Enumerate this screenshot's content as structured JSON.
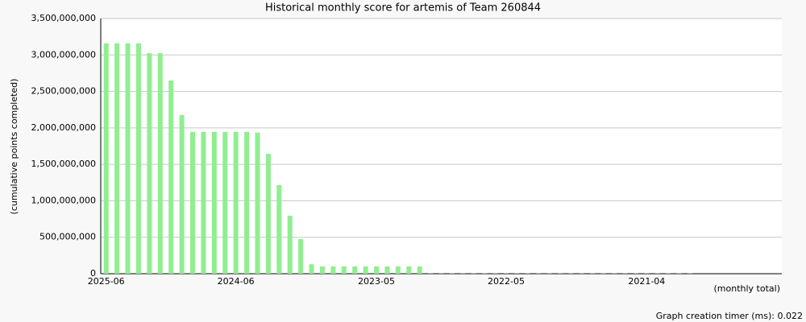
{
  "chart_data": {
    "type": "bar",
    "title": "Historical monthly score for artemis of Team 260844",
    "y_label": "(cumulative points completed)",
    "x_label": "(monthly total)",
    "footer": "Graph creation timer (ms): 0.022",
    "color": "#90ee90",
    "grid": true,
    "categories": [
      "2025-06",
      null,
      null,
      null,
      null,
      null,
      null,
      null,
      null,
      null,
      null,
      null,
      "2024-06",
      null,
      null,
      null,
      null,
      null,
      null,
      null,
      null,
      null,
      null,
      null,
      null,
      "2023-05",
      null,
      null,
      null,
      null,
      null,
      null,
      null,
      null,
      null,
      null,
      null,
      "2022-05",
      null,
      null,
      null,
      null,
      null,
      null,
      null,
      null,
      null,
      null,
      null,
      null,
      "2021-04",
      null,
      null,
      null,
      null,
      null,
      null,
      null,
      null,
      null,
      null,
      null,
      null
    ],
    "values": [
      3160000000,
      3160000000,
      3160000000,
      3160000000,
      3025000000,
      3025000000,
      2650000000,
      2175000000,
      1945000000,
      1945000000,
      1945000000,
      1945000000,
      1945000000,
      1945000000,
      1935000000,
      1645000000,
      1215000000,
      795000000,
      475000000,
      130000000,
      100000000,
      100000000,
      100000000,
      100000000,
      100000000,
      100000000,
      100000000,
      100000000,
      100000000,
      100000000,
      3000000,
      3000000,
      3000000,
      3000000,
      3000000,
      3000000,
      3000000,
      3000000,
      3000000,
      3000000,
      3000000,
      3000000,
      3000000,
      3000000,
      3000000,
      3000000,
      3000000,
      3000000,
      3000000,
      3000000,
      3000000,
      3000000,
      3000000,
      3000000,
      3000000,
      0,
      0,
      0,
      0,
      0,
      0,
      0,
      0
    ],
    "ylim": [
      0,
      3500000000
    ],
    "yticks": [
      {
        "value": 0,
        "label": "0"
      },
      {
        "value": 500000000,
        "label": "500,000,000"
      },
      {
        "value": 1000000000,
        "label": "1,000,000,000"
      },
      {
        "value": 1500000000,
        "label": "1,500,000,000"
      },
      {
        "value": 2000000000,
        "label": "2,000,000,000"
      },
      {
        "value": 2500000000,
        "label": "2,500,000,000"
      },
      {
        "value": 3000000000,
        "label": "3,000,000,000"
      },
      {
        "value": 3500000000,
        "label": "3,500,000,000"
      }
    ]
  }
}
